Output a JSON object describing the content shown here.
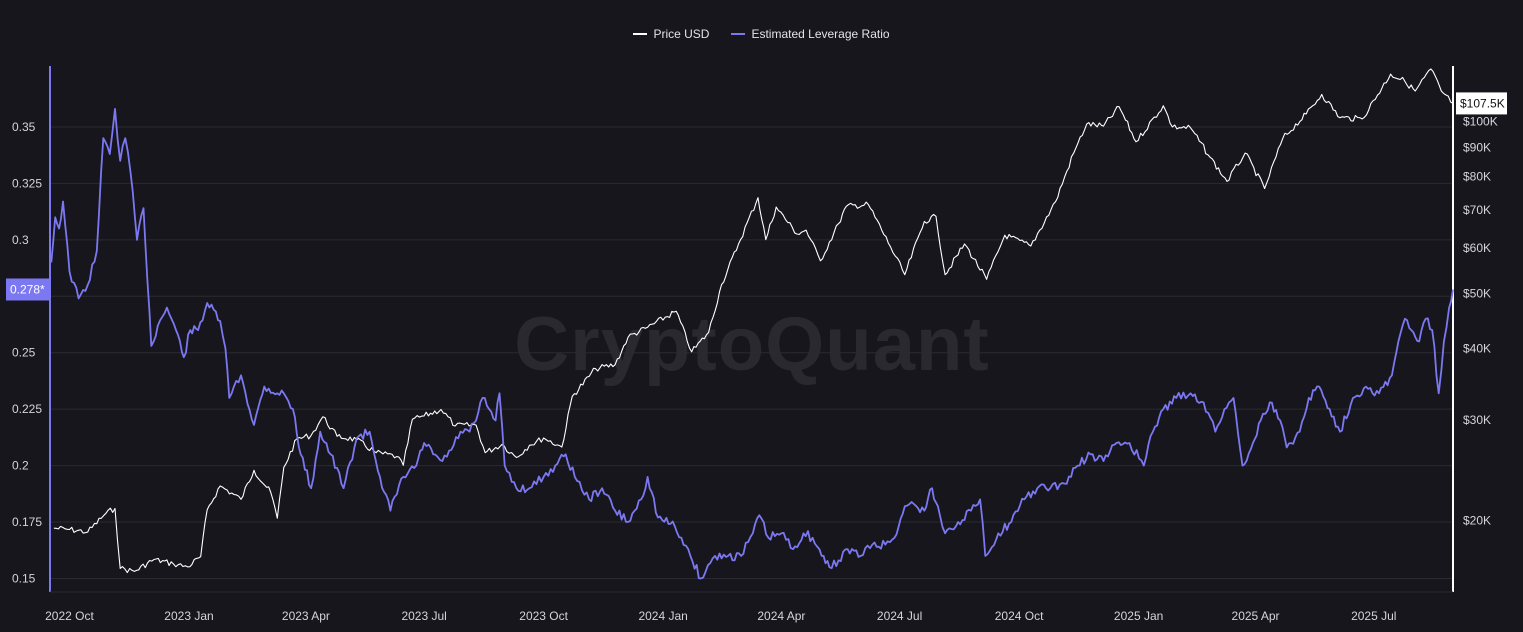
{
  "watermark": "CryptoQuant",
  "legend": {
    "price_label": "Price USD",
    "leverage_label": "Estimated Leverage Ratio"
  },
  "colors": {
    "background": "#17161c",
    "price": "#ffffff",
    "leverage": "#7b78f2",
    "grid": "#2b2a31"
  },
  "chart_data": {
    "type": "line",
    "title": "",
    "xlabel": "",
    "ylabel": "",
    "x_range": [
      "2022-09-16",
      "2025-08-31"
    ],
    "x_ticks": [
      {
        "date": "2022-10-01",
        "label": "2022 Oct"
      },
      {
        "date": "2023-01-01",
        "label": "2023 Jan"
      },
      {
        "date": "2023-04-01",
        "label": "2023 Apr"
      },
      {
        "date": "2023-07-01",
        "label": "2023 Jul"
      },
      {
        "date": "2023-10-01",
        "label": "2023 Oct"
      },
      {
        "date": "2024-01-01",
        "label": "2024 Jan"
      },
      {
        "date": "2024-04-01",
        "label": "2024 Apr"
      },
      {
        "date": "2024-07-01",
        "label": "2024 Jul"
      },
      {
        "date": "2024-10-01",
        "label": "2024 Oct"
      },
      {
        "date": "2025-01-01",
        "label": "2025 Jan"
      },
      {
        "date": "2025-04-01",
        "label": "2025 Apr"
      },
      {
        "date": "2025-07-01",
        "label": "2025 Jul"
      }
    ],
    "y_left": {
      "range": [
        0.144,
        0.377
      ],
      "ticks": [
        0.15,
        0.175,
        0.2,
        0.225,
        0.25,
        0.275,
        0.3,
        0.325,
        0.35
      ],
      "tick_labels": [
        "0.15",
        "0.175",
        "0.2",
        "0.225",
        "0.25",
        "",
        "0.3",
        "0.325",
        "0.35"
      ],
      "current_value": 0.278,
      "current_label": "0.278*"
    },
    "y_right": {
      "scale": "log",
      "range": [
        15000,
        125000
      ],
      "ticks": [
        20000,
        30000,
        40000,
        50000,
        60000,
        70000,
        80000,
        90000,
        100000
      ],
      "tick_labels": [
        "$20K",
        "$30K",
        "$40K",
        "$50K",
        "$60K",
        "$70K",
        "$80K",
        "$90K",
        "$100K"
      ],
      "current_value": 107500,
      "current_label": "$107.5K"
    },
    "series": [
      {
        "name": "Price USD",
        "axis": "right",
        "points": [
          [
            "2022-09-19",
            19400
          ],
          [
            "2022-10-01",
            19300
          ],
          [
            "2022-10-15",
            19100
          ],
          [
            "2022-10-29",
            20600
          ],
          [
            "2022-11-05",
            21000
          ],
          [
            "2022-11-09",
            16500
          ],
          [
            "2022-11-20",
            16300
          ],
          [
            "2022-12-05",
            17100
          ],
          [
            "2022-12-20",
            16800
          ],
          [
            "2022-12-31",
            16600
          ],
          [
            "2023-01-10",
            17300
          ],
          [
            "2023-01-15",
            20900
          ],
          [
            "2023-01-25",
            23000
          ],
          [
            "2023-02-10",
            21800
          ],
          [
            "2023-02-20",
            24500
          ],
          [
            "2023-03-05",
            22400
          ],
          [
            "2023-03-10",
            20200
          ],
          [
            "2023-03-15",
            24800
          ],
          [
            "2023-03-25",
            27800
          ],
          [
            "2023-04-05",
            28200
          ],
          [
            "2023-04-14",
            30400
          ],
          [
            "2023-04-25",
            28100
          ],
          [
            "2023-05-10",
            27700
          ],
          [
            "2023-05-25",
            26300
          ],
          [
            "2023-06-10",
            25900
          ],
          [
            "2023-06-15",
            25000
          ],
          [
            "2023-06-22",
            30100
          ],
          [
            "2023-07-01",
            30500
          ],
          [
            "2023-07-14",
            31300
          ],
          [
            "2023-07-25",
            29300
          ],
          [
            "2023-08-10",
            29400
          ],
          [
            "2023-08-17",
            26300
          ],
          [
            "2023-08-30",
            27200
          ],
          [
            "2023-09-10",
            25800
          ],
          [
            "2023-09-20",
            27100
          ],
          [
            "2023-10-01",
            27900
          ],
          [
            "2023-10-15",
            26900
          ],
          [
            "2023-10-23",
            33000
          ],
          [
            "2023-11-10",
            36900
          ],
          [
            "2023-11-25",
            37500
          ],
          [
            "2023-12-05",
            41900
          ],
          [
            "2023-12-20",
            43600
          ],
          [
            "2024-01-11",
            46500
          ],
          [
            "2024-01-23",
            39500
          ],
          [
            "2024-02-05",
            42700
          ],
          [
            "2024-02-15",
            51800
          ],
          [
            "2024-02-28",
            61000
          ],
          [
            "2024-03-14",
            73500
          ],
          [
            "2024-03-20",
            62100
          ],
          [
            "2024-03-28",
            70800
          ],
          [
            "2024-04-13",
            63500
          ],
          [
            "2024-04-20",
            64500
          ],
          [
            "2024-05-01",
            57000
          ],
          [
            "2024-05-15",
            66200
          ],
          [
            "2024-05-21",
            71000
          ],
          [
            "2024-06-07",
            71500
          ],
          [
            "2024-06-24",
            60300
          ],
          [
            "2024-07-05",
            53900
          ],
          [
            "2024-07-20",
            66800
          ],
          [
            "2024-07-29",
            68200
          ],
          [
            "2024-08-05",
            53900
          ],
          [
            "2024-08-20",
            61000
          ],
          [
            "2024-09-06",
            52900
          ],
          [
            "2024-09-20",
            63200
          ],
          [
            "2024-10-10",
            60500
          ],
          [
            "2024-10-29",
            72300
          ],
          [
            "2024-11-12",
            88000
          ],
          [
            "2024-11-22",
            98900
          ],
          [
            "2024-12-05",
            98100
          ],
          [
            "2024-12-17",
            106100
          ],
          [
            "2024-12-30",
            92100
          ],
          [
            "2025-01-20",
            106500
          ],
          [
            "2025-01-27",
            97800
          ],
          [
            "2025-02-10",
            97400
          ],
          [
            "2025-02-25",
            86500
          ],
          [
            "2025-03-10",
            78500
          ],
          [
            "2025-03-24",
            88000
          ],
          [
            "2025-04-08",
            76300
          ],
          [
            "2025-04-22",
            93400
          ],
          [
            "2025-05-10",
            103000
          ],
          [
            "2025-05-22",
            111500
          ],
          [
            "2025-06-05",
            101500
          ],
          [
            "2025-06-22",
            101000
          ],
          [
            "2025-07-14",
            121000
          ],
          [
            "2025-07-25",
            117500
          ],
          [
            "2025-08-02",
            113000
          ],
          [
            "2025-08-14",
            123500
          ],
          [
            "2025-08-22",
            113000
          ],
          [
            "2025-08-31",
            107500
          ]
        ]
      },
      {
        "name": "Estimated Leverage Ratio",
        "axis": "left",
        "points": [
          [
            "2022-09-17",
            0.29
          ],
          [
            "2022-09-20",
            0.31
          ],
          [
            "2022-09-23",
            0.305
          ],
          [
            "2022-09-26",
            0.317
          ],
          [
            "2022-10-01",
            0.286
          ],
          [
            "2022-10-08",
            0.274
          ],
          [
            "2022-10-15",
            0.28
          ],
          [
            "2022-10-22",
            0.295
          ],
          [
            "2022-10-27",
            0.345
          ],
          [
            "2022-11-01",
            0.338
          ],
          [
            "2022-11-05",
            0.358
          ],
          [
            "2022-11-09",
            0.335
          ],
          [
            "2022-11-13",
            0.345
          ],
          [
            "2022-11-17",
            0.33
          ],
          [
            "2022-11-22",
            0.3
          ],
          [
            "2022-11-27",
            0.314
          ],
          [
            "2022-12-03",
            0.253
          ],
          [
            "2022-12-08",
            0.262
          ],
          [
            "2022-12-15",
            0.27
          ],
          [
            "2022-12-22",
            0.26
          ],
          [
            "2022-12-28",
            0.248
          ],
          [
            "2023-01-02",
            0.26
          ],
          [
            "2023-01-08",
            0.26
          ],
          [
            "2023-01-15",
            0.272
          ],
          [
            "2023-01-25",
            0.264
          ],
          [
            "2023-01-29",
            0.252
          ],
          [
            "2023-02-01",
            0.23
          ],
          [
            "2023-02-10",
            0.24
          ],
          [
            "2023-02-20",
            0.218
          ],
          [
            "2023-02-28",
            0.235
          ],
          [
            "2023-03-10",
            0.232
          ],
          [
            "2023-03-15",
            0.232
          ],
          [
            "2023-03-22",
            0.225
          ],
          [
            "2023-03-28",
            0.205
          ],
          [
            "2023-04-05",
            0.19
          ],
          [
            "2023-04-12",
            0.215
          ],
          [
            "2023-04-20",
            0.205
          ],
          [
            "2023-04-30",
            0.19
          ],
          [
            "2023-05-10",
            0.212
          ],
          [
            "2023-05-20",
            0.215
          ],
          [
            "2023-05-28",
            0.195
          ],
          [
            "2023-06-05",
            0.18
          ],
          [
            "2023-06-15",
            0.195
          ],
          [
            "2023-06-25",
            0.2
          ],
          [
            "2023-07-01",
            0.21
          ],
          [
            "2023-07-08",
            0.205
          ],
          [
            "2023-07-15",
            0.202
          ],
          [
            "2023-07-22",
            0.207
          ],
          [
            "2023-07-29",
            0.215
          ],
          [
            "2023-08-05",
            0.215
          ],
          [
            "2023-08-10",
            0.22
          ],
          [
            "2023-08-15",
            0.23
          ],
          [
            "2023-08-20",
            0.225
          ],
          [
            "2023-08-25",
            0.22
          ],
          [
            "2023-08-28",
            0.232
          ],
          [
            "2023-09-01",
            0.2
          ],
          [
            "2023-09-10",
            0.19
          ],
          [
            "2023-09-20",
            0.19
          ],
          [
            "2023-10-01",
            0.195
          ],
          [
            "2023-10-10",
            0.2
          ],
          [
            "2023-10-18",
            0.205
          ],
          [
            "2023-10-25",
            0.195
          ],
          [
            "2023-11-05",
            0.185
          ],
          [
            "2023-11-15",
            0.19
          ],
          [
            "2023-11-25",
            0.18
          ],
          [
            "2023-12-05",
            0.175
          ],
          [
            "2023-12-15",
            0.185
          ],
          [
            "2023-12-20",
            0.195
          ],
          [
            "2023-12-28",
            0.177
          ],
          [
            "2024-01-10",
            0.173
          ],
          [
            "2024-01-15",
            0.168
          ],
          [
            "2024-01-22",
            0.16
          ],
          [
            "2024-01-30",
            0.15
          ],
          [
            "2024-02-10",
            0.16
          ],
          [
            "2024-02-20",
            0.16
          ],
          [
            "2024-03-01",
            0.16
          ],
          [
            "2024-03-10",
            0.17
          ],
          [
            "2024-03-15",
            0.178
          ],
          [
            "2024-03-22",
            0.168
          ],
          [
            "2024-04-01",
            0.17
          ],
          [
            "2024-04-10",
            0.163
          ],
          [
            "2024-04-18",
            0.17
          ],
          [
            "2024-04-25",
            0.168
          ],
          [
            "2024-05-02",
            0.16
          ],
          [
            "2024-05-08",
            0.155
          ],
          [
            "2024-05-15",
            0.158
          ],
          [
            "2024-05-22",
            0.163
          ],
          [
            "2024-06-01",
            0.16
          ],
          [
            "2024-06-10",
            0.165
          ],
          [
            "2024-06-20",
            0.165
          ],
          [
            "2024-06-27",
            0.168
          ],
          [
            "2024-07-05",
            0.182
          ],
          [
            "2024-07-12",
            0.183
          ],
          [
            "2024-07-20",
            0.18
          ],
          [
            "2024-07-26",
            0.19
          ],
          [
            "2024-08-01",
            0.178
          ],
          [
            "2024-08-05",
            0.17
          ],
          [
            "2024-08-15",
            0.175
          ],
          [
            "2024-08-25",
            0.18
          ],
          [
            "2024-09-01",
            0.185
          ],
          [
            "2024-09-05",
            0.16
          ],
          [
            "2024-09-15",
            0.17
          ],
          [
            "2024-09-25",
            0.175
          ],
          [
            "2024-10-05",
            0.185
          ],
          [
            "2024-10-15",
            0.19
          ],
          [
            "2024-10-25",
            0.19
          ],
          [
            "2024-11-05",
            0.192
          ],
          [
            "2024-11-15",
            0.2
          ],
          [
            "2024-11-25",
            0.205
          ],
          [
            "2024-12-05",
            0.202
          ],
          [
            "2024-12-15",
            0.21
          ],
          [
            "2024-12-25",
            0.21
          ],
          [
            "2025-01-05",
            0.2
          ],
          [
            "2025-01-12",
            0.215
          ],
          [
            "2025-01-20",
            0.225
          ],
          [
            "2025-01-30",
            0.23
          ],
          [
            "2025-02-10",
            0.232
          ],
          [
            "2025-02-20",
            0.228
          ],
          [
            "2025-03-01",
            0.215
          ],
          [
            "2025-03-08",
            0.225
          ],
          [
            "2025-03-15",
            0.23
          ],
          [
            "2025-03-22",
            0.2
          ],
          [
            "2025-03-30",
            0.21
          ],
          [
            "2025-04-05",
            0.22
          ],
          [
            "2025-04-12",
            0.228
          ],
          [
            "2025-04-20",
            0.22
          ],
          [
            "2025-04-25",
            0.208
          ],
          [
            "2025-05-05",
            0.215
          ],
          [
            "2025-05-12",
            0.23
          ],
          [
            "2025-05-20",
            0.235
          ],
          [
            "2025-05-28",
            0.225
          ],
          [
            "2025-06-05",
            0.215
          ],
          [
            "2025-06-15",
            0.23
          ],
          [
            "2025-06-25",
            0.235
          ],
          [
            "2025-07-05",
            0.232
          ],
          [
            "2025-07-15",
            0.24
          ],
          [
            "2025-07-20",
            0.255
          ],
          [
            "2025-07-25",
            0.265
          ],
          [
            "2025-07-30",
            0.26
          ],
          [
            "2025-08-05",
            0.255
          ],
          [
            "2025-08-10",
            0.265
          ],
          [
            "2025-08-15",
            0.26
          ],
          [
            "2025-08-20",
            0.232
          ],
          [
            "2025-08-24",
            0.255
          ],
          [
            "2025-08-28",
            0.27
          ],
          [
            "2025-08-31",
            0.278
          ]
        ]
      }
    ]
  }
}
